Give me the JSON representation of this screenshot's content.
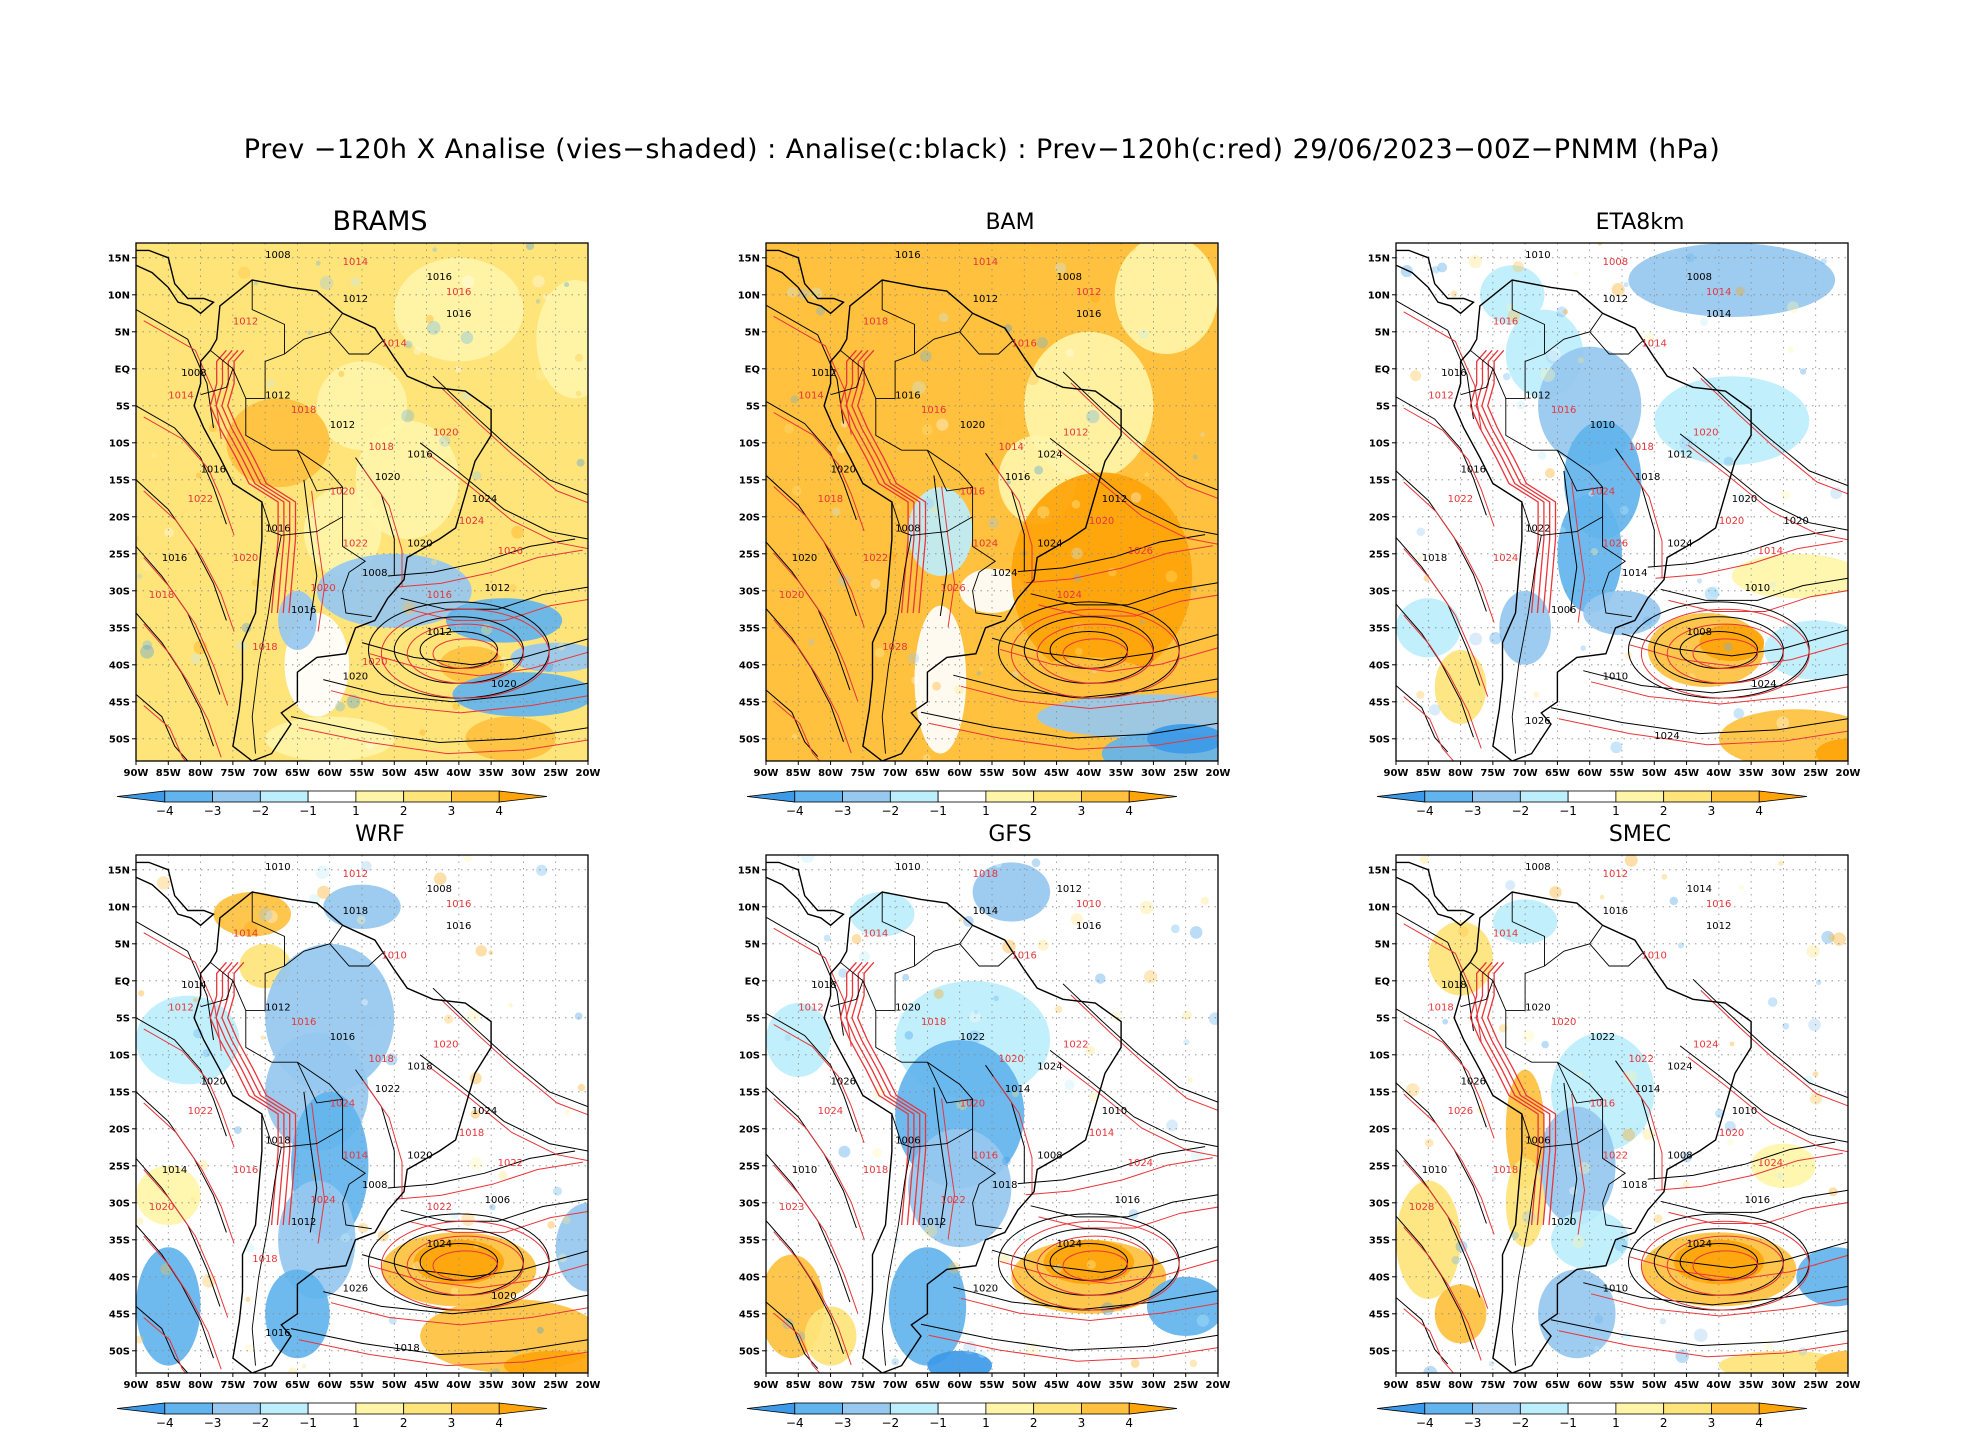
{
  "title": "Prev −120h X Analise (vies−shaded) : Analise(c:black) : Prev−120h(c:red) 29/06/2023−00Z−PNMM (hPa)",
  "lat_labels": [
    "15N",
    "10N",
    "5N",
    "EQ",
    "5S",
    "10S",
    "15S",
    "20S",
    "25S",
    "30S",
    "35S",
    "40S",
    "45S",
    "50S"
  ],
  "lon_labels": [
    "90W",
    "85W",
    "80W",
    "75W",
    "70W",
    "65W",
    "60W",
    "55W",
    "50W",
    "45W",
    "40W",
    "35W",
    "30W",
    "25W",
    "20W"
  ],
  "colorbar": {
    "tick_labels": [
      "−4",
      "−3",
      "−2",
      "−1",
      "1",
      "2",
      "3",
      "4"
    ],
    "colors": [
      "#3d9ae8",
      "#62b4ee",
      "#96c8f0",
      "#bdeefc",
      "#ffffff",
      "#fff5a8",
      "#ffe47a",
      "#ffc13e",
      "#ffa409"
    ]
  },
  "colors": {
    "analysis_contour": "#000000",
    "forecast_contour": "#e8353a",
    "grid": "#888888"
  },
  "panels": [
    {
      "name": "BRAMS",
      "big_title": true,
      "labels_black": [
        "1008",
        "1016",
        "1012",
        "1016",
        "1008",
        "1012",
        "1012",
        "1016",
        "1016",
        "1020",
        "1024",
        "1016",
        "1020",
        "1016",
        "1008",
        "1012",
        "1016",
        "1012",
        "1020",
        "1020"
      ],
      "labels_red": [
        "1014",
        "1016",
        "1012",
        "1014",
        "1014",
        "1018",
        "1018",
        "1020",
        "1022",
        "1020",
        "1024",
        "1020",
        "1022",
        "1026",
        "1018",
        "1020",
        "1016",
        "1018",
        "1020"
      ]
    },
    {
      "name": "BAM",
      "big_title": false,
      "labels_black": [
        "1016",
        "1008",
        "1012",
        "1016",
        "1012",
        "1016",
        "1020",
        "1024",
        "1020",
        "1016",
        "1012",
        "1008",
        "1024",
        "1020",
        "1024"
      ],
      "labels_red": [
        "1014",
        "1012",
        "1018",
        "1016",
        "1014",
        "1016",
        "1014",
        "1012",
        "1018",
        "1016",
        "1020",
        "1022",
        "1024",
        "1026",
        "1020",
        "1026",
        "1024",
        "1028"
      ]
    },
    {
      "name": "ETA8km",
      "big_title": false,
      "labels_black": [
        "1010",
        "1008",
        "1012",
        "1014",
        "1016",
        "1012",
        "1010",
        "1012",
        "1016",
        "1018",
        "1020",
        "1022",
        "1024",
        "1018",
        "1014",
        "1010",
        "1006",
        "1008",
        "1010",
        "1024",
        "1026",
        "1024",
        "1020"
      ],
      "labels_red": [
        "1008",
        "1014",
        "1016",
        "1014",
        "1012",
        "1016",
        "1018",
        "1020",
        "1022",
        "1024",
        "1020",
        "1024",
        "1026",
        "1014"
      ]
    },
    {
      "name": "WRF",
      "big_title": false,
      "labels_black": [
        "1010",
        "1008",
        "1018",
        "1016",
        "1014",
        "1012",
        "1016",
        "1018",
        "1020",
        "1022",
        "1024",
        "1018",
        "1020",
        "1014",
        "1008",
        "1006",
        "1012",
        "1024",
        "1026",
        "1020",
        "1016",
        "1018"
      ],
      "labels_red": [
        "1012",
        "1016",
        "1014",
        "1010",
        "1012",
        "1016",
        "1018",
        "1020",
        "1022",
        "1024",
        "1018",
        "1016",
        "1014",
        "1022",
        "1020",
        "1024",
        "1022",
        "1018"
      ]
    },
    {
      "name": "GFS",
      "big_title": false,
      "labels_black": [
        "1010",
        "1012",
        "1014",
        "1016",
        "1018",
        "1020",
        "1022",
        "1024",
        "1026",
        "1014",
        "1010",
        "1006",
        "1008",
        "1010",
        "1018",
        "1016",
        "1012",
        "1024",
        "1020"
      ],
      "labels_red": [
        "1018",
        "1010",
        "1014",
        "1016",
        "1012",
        "1018",
        "1020",
        "1022",
        "1024",
        "1020",
        "1014",
        "1018",
        "1016",
        "1024",
        "1023",
        "1022"
      ]
    },
    {
      "name": "SMEC",
      "big_title": false,
      "labels_black": [
        "1008",
        "1014",
        "1016",
        "1012",
        "1018",
        "1020",
        "1022",
        "1024",
        "1026",
        "1014",
        "1010",
        "1006",
        "1008",
        "1010",
        "1018",
        "1016",
        "1020",
        "1024",
        "1010"
      ],
      "labels_red": [
        "1012",
        "1016",
        "1014",
        "1010",
        "1018",
        "1020",
        "1022",
        "1024",
        "1026",
        "1016",
        "1020",
        "1018",
        "1022",
        "1024",
        "1028"
      ]
    }
  ]
}
